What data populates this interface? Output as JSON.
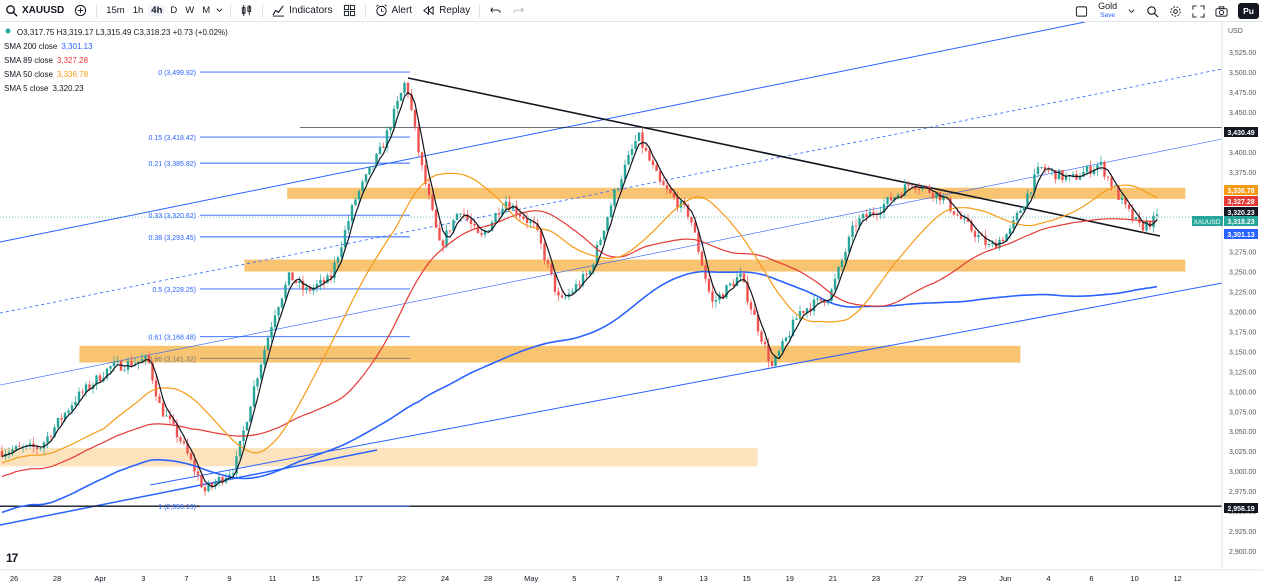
{
  "toolbar": {
    "symbol": "XAUUSD",
    "timeframes": [
      "15m",
      "1h",
      "4h",
      "D",
      "W",
      "M"
    ],
    "active_timeframe": "4h",
    "indicators_label": "Indicators",
    "alert_label": "Alert",
    "replay_label": "Replay",
    "layout_name": "Gold",
    "layout_status": "Save",
    "publish_label": "Pu"
  },
  "legend": {
    "ohlc": "O3,317.75 H3,319.17 L3,315.49 C3,318.23 +0.73 (+0.02%)",
    "indicators": [
      {
        "name": "SMA 200 close",
        "value": "3,301.13",
        "color": "#2962ff"
      },
      {
        "name": "SMA 89 close",
        "value": "3,327.28",
        "color": "#e53935"
      },
      {
        "name": "SMA 50 close",
        "value": "3,336.78",
        "color": "#f59b16"
      },
      {
        "name": "SMA 5 close",
        "value": "3,320.23",
        "color": "#131722"
      }
    ]
  },
  "chart_data": {
    "type": "candlestick",
    "currency": "USD",
    "y_ticks": [
      "3,525.00",
      "3,500.00",
      "3,475.00",
      "3,450.00",
      "3,425.00",
      "3,400.00",
      "3,375.00",
      "3,350.00",
      "3,325.00",
      "3,300.00",
      "3,275.00",
      "3,250.00",
      "3,225.00",
      "3,200.00",
      "3,175.00",
      "3,150.00",
      "3,125.00",
      "3,100.00",
      "3,075.00",
      "3,050.00",
      "3,025.00",
      "3,000.00",
      "2,975.00",
      "2,950.00",
      "2,925.00",
      "2,900.00"
    ],
    "x_ticks": [
      "26",
      "28",
      "Apr",
      "3",
      "7",
      "9",
      "11",
      "15",
      "17",
      "22",
      "24",
      "28",
      "May",
      "5",
      "7",
      "9",
      "13",
      "15",
      "19",
      "21",
      "23",
      "27",
      "29",
      "Jun",
      "4",
      "6",
      "10",
      "12"
    ],
    "price_tags": [
      {
        "label": "3,430.49",
        "value": 3430.49,
        "bg": "#131722",
        "fg": "#ffffff"
      },
      {
        "label": "3,336.78",
        "value": 3336.78,
        "bg": "#f59b16",
        "fg": "#ffffff"
      },
      {
        "label": "3,327.28",
        "value": 3327.28,
        "bg": "#e53935",
        "fg": "#ffffff"
      },
      {
        "label": "3,320.23",
        "value": 3320.23,
        "bg": "#131722",
        "fg": "#ffffff"
      },
      {
        "label": "3,318.23",
        "value": 3318.23,
        "bg": "#26a69a",
        "fg": "#ffffff"
      },
      {
        "label": "3,301.13",
        "value": 3301.13,
        "bg": "#2962ff",
        "fg": "#ffffff"
      },
      {
        "label": "2,956.19",
        "value": 2956.19,
        "bg": "#131722",
        "fg": "#ffffff"
      }
    ],
    "symbol_tag": "XAUUSD",
    "fib_levels": [
      {
        "label": "0 (3,499.92)",
        "value": 3499.92
      },
      {
        "label": "0.15 (3,418.42)",
        "value": 3418.42
      },
      {
        "label": "0.21 (3,385.82)",
        "value": 3385.82
      },
      {
        "label": "0.33 (3,320.62)",
        "value": 3320.62
      },
      {
        "label": "0.38 (3,293.45)",
        "value": 3293.45
      },
      {
        "label": "0.5 (3,228.25)",
        "value": 3228.25
      },
      {
        "label": "0.61 (3,168.48)",
        "value": 3168.48
      },
      {
        "label": "0.66 (3,141.32)",
        "value": 3141.32
      },
      {
        "label": "1 (2,956.19)",
        "value": 2956.19
      }
    ],
    "zones": [
      {
        "top": 3355,
        "bottom": 3341,
        "from": 0.235,
        "to": 0.97
      },
      {
        "top": 3265,
        "bottom": 3250,
        "from": 0.2,
        "to": 0.97
      },
      {
        "top": 3157,
        "bottom": 3136,
        "from": 0.065,
        "to": 0.835
      },
      {
        "top": 3029,
        "bottom": 3006,
        "from": 0.0,
        "to": 0.62
      }
    ],
    "sma_values": {
      "sma200": 3301.13,
      "sma89": 3327.28,
      "sma50": 3336.78,
      "sma5": 3320.23
    },
    "last_close": 3318.23
  },
  "colors": {
    "up": "#26a69a",
    "down": "#ef5350",
    "fib": "#2962ff",
    "zone": "#f5b041",
    "channel": "#2962ff"
  }
}
